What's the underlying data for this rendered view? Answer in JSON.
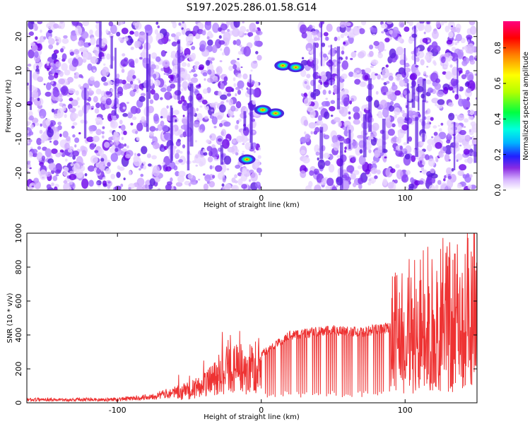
{
  "title": "S197.2025.286.01.58.G14",
  "colors": {
    "line": "#ee3333",
    "frame": "#000000"
  },
  "chart_data": [
    {
      "type": "heatmap",
      "xlabel": "Height of straight line (km)",
      "ylabel": "Frequency (Hz)",
      "xlim": [
        -163,
        150
      ],
      "ylim": [
        -25,
        24.5
      ],
      "xticks": [
        -100,
        0,
        100
      ],
      "xtick_labels": [
        "-100",
        "0",
        "100"
      ],
      "yticks": [
        -20,
        -10,
        0,
        10,
        20
      ],
      "ytick_labels": [
        "-20",
        "-10",
        "0",
        "10",
        "20"
      ],
      "blank_band_km": [
        -1,
        28
      ],
      "peaks": [
        {
          "x": 15,
          "y": 11.5
        },
        {
          "x": 24,
          "y": 11
        },
        {
          "x": 1,
          "y": -1.5
        },
        {
          "x": 10,
          "y": -2.5
        },
        {
          "x": -10,
          "y": -16
        }
      ],
      "colorbar": {
        "label": "Normalized spectral amplitude",
        "ticks": [
          0.0,
          0.2,
          0.4,
          0.6,
          0.8
        ],
        "tick_labels": [
          "0.0",
          "0.2",
          "0.4",
          "0.6",
          "0.8"
        ],
        "range": [
          0,
          0.95
        ]
      }
    },
    {
      "type": "line",
      "xlabel": "Height of straight line (km)",
      "ylabel": "SNR (10 * v/v)",
      "xlim": [
        -163,
        150
      ],
      "ylim": [
        0,
        1000
      ],
      "xticks": [
        -100,
        0,
        100
      ],
      "xtick_labels": [
        "-100",
        "0",
        "100"
      ],
      "yticks": [
        0,
        200,
        400,
        600,
        800,
        1000
      ],
      "ytick_labels": [
        "0",
        "200",
        "400",
        "600",
        "800",
        "1000"
      ],
      "series": [
        {
          "name": "SNR",
          "x": [
            -163,
            -150,
            -140,
            -130,
            -120,
            -110,
            -100,
            -90,
            -80,
            -70,
            -60,
            -50,
            -45,
            -40,
            -35,
            -30,
            -25,
            -22,
            -20,
            -15,
            -10,
            -5,
            0,
            5,
            10,
            15,
            20,
            30,
            40,
            50,
            60,
            70,
            80,
            90,
            100,
            110,
            120,
            130,
            140,
            150
          ],
          "values": [
            20,
            25,
            20,
            22,
            25,
            20,
            25,
            30,
            40,
            55,
            75,
            90,
            110,
            130,
            160,
            200,
            230,
            290,
            250,
            250,
            240,
            260,
            300,
            330,
            360,
            390,
            420,
            430,
            440,
            450,
            445,
            440,
            455,
            470,
            520,
            580,
            600,
            620,
            650,
            660
          ]
        }
      ]
    }
  ]
}
